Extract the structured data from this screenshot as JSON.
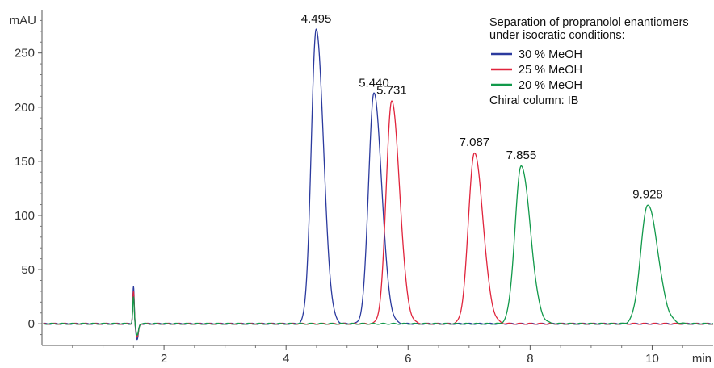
{
  "chart_data": {
    "type": "line",
    "title": "",
    "xlabel": "min",
    "ylabel": "mAU",
    "xlim": [
      0,
      11
    ],
    "ylim": [
      -20,
      290
    ],
    "x_ticks": [
      2,
      4,
      6,
      8,
      10
    ],
    "y_ticks": [
      0,
      50,
      100,
      150,
      200,
      250
    ],
    "grid": false,
    "legend": {
      "placement": "top-right",
      "title_lines": [
        "Separation of propranolol enantiomers",
        "under isocratic conditions:"
      ],
      "footer": "Chiral column: IB"
    },
    "series": [
      {
        "name": "30 % MeOH",
        "color": "#2b3a9e",
        "peaks": [
          {
            "rt": 4.495,
            "height": 272,
            "label": "4.495"
          },
          {
            "rt": 5.44,
            "height": 213,
            "label": "5.440"
          }
        ]
      },
      {
        "name": "25 % MeOH",
        "color": "#e0243c",
        "peaks": [
          {
            "rt": 5.731,
            "height": 206,
            "label": "5.731"
          },
          {
            "rt": 7.087,
            "height": 158,
            "label": "7.087"
          }
        ]
      },
      {
        "name": "20 % MeOH",
        "color": "#11994a",
        "peaks": [
          {
            "rt": 7.855,
            "height": 146,
            "label": "7.855"
          },
          {
            "rt": 9.928,
            "height": 110,
            "label": "9.928"
          }
        ]
      }
    ],
    "injection_disturbance": {
      "time": 1.5,
      "max": 35,
      "min": -15
    }
  }
}
